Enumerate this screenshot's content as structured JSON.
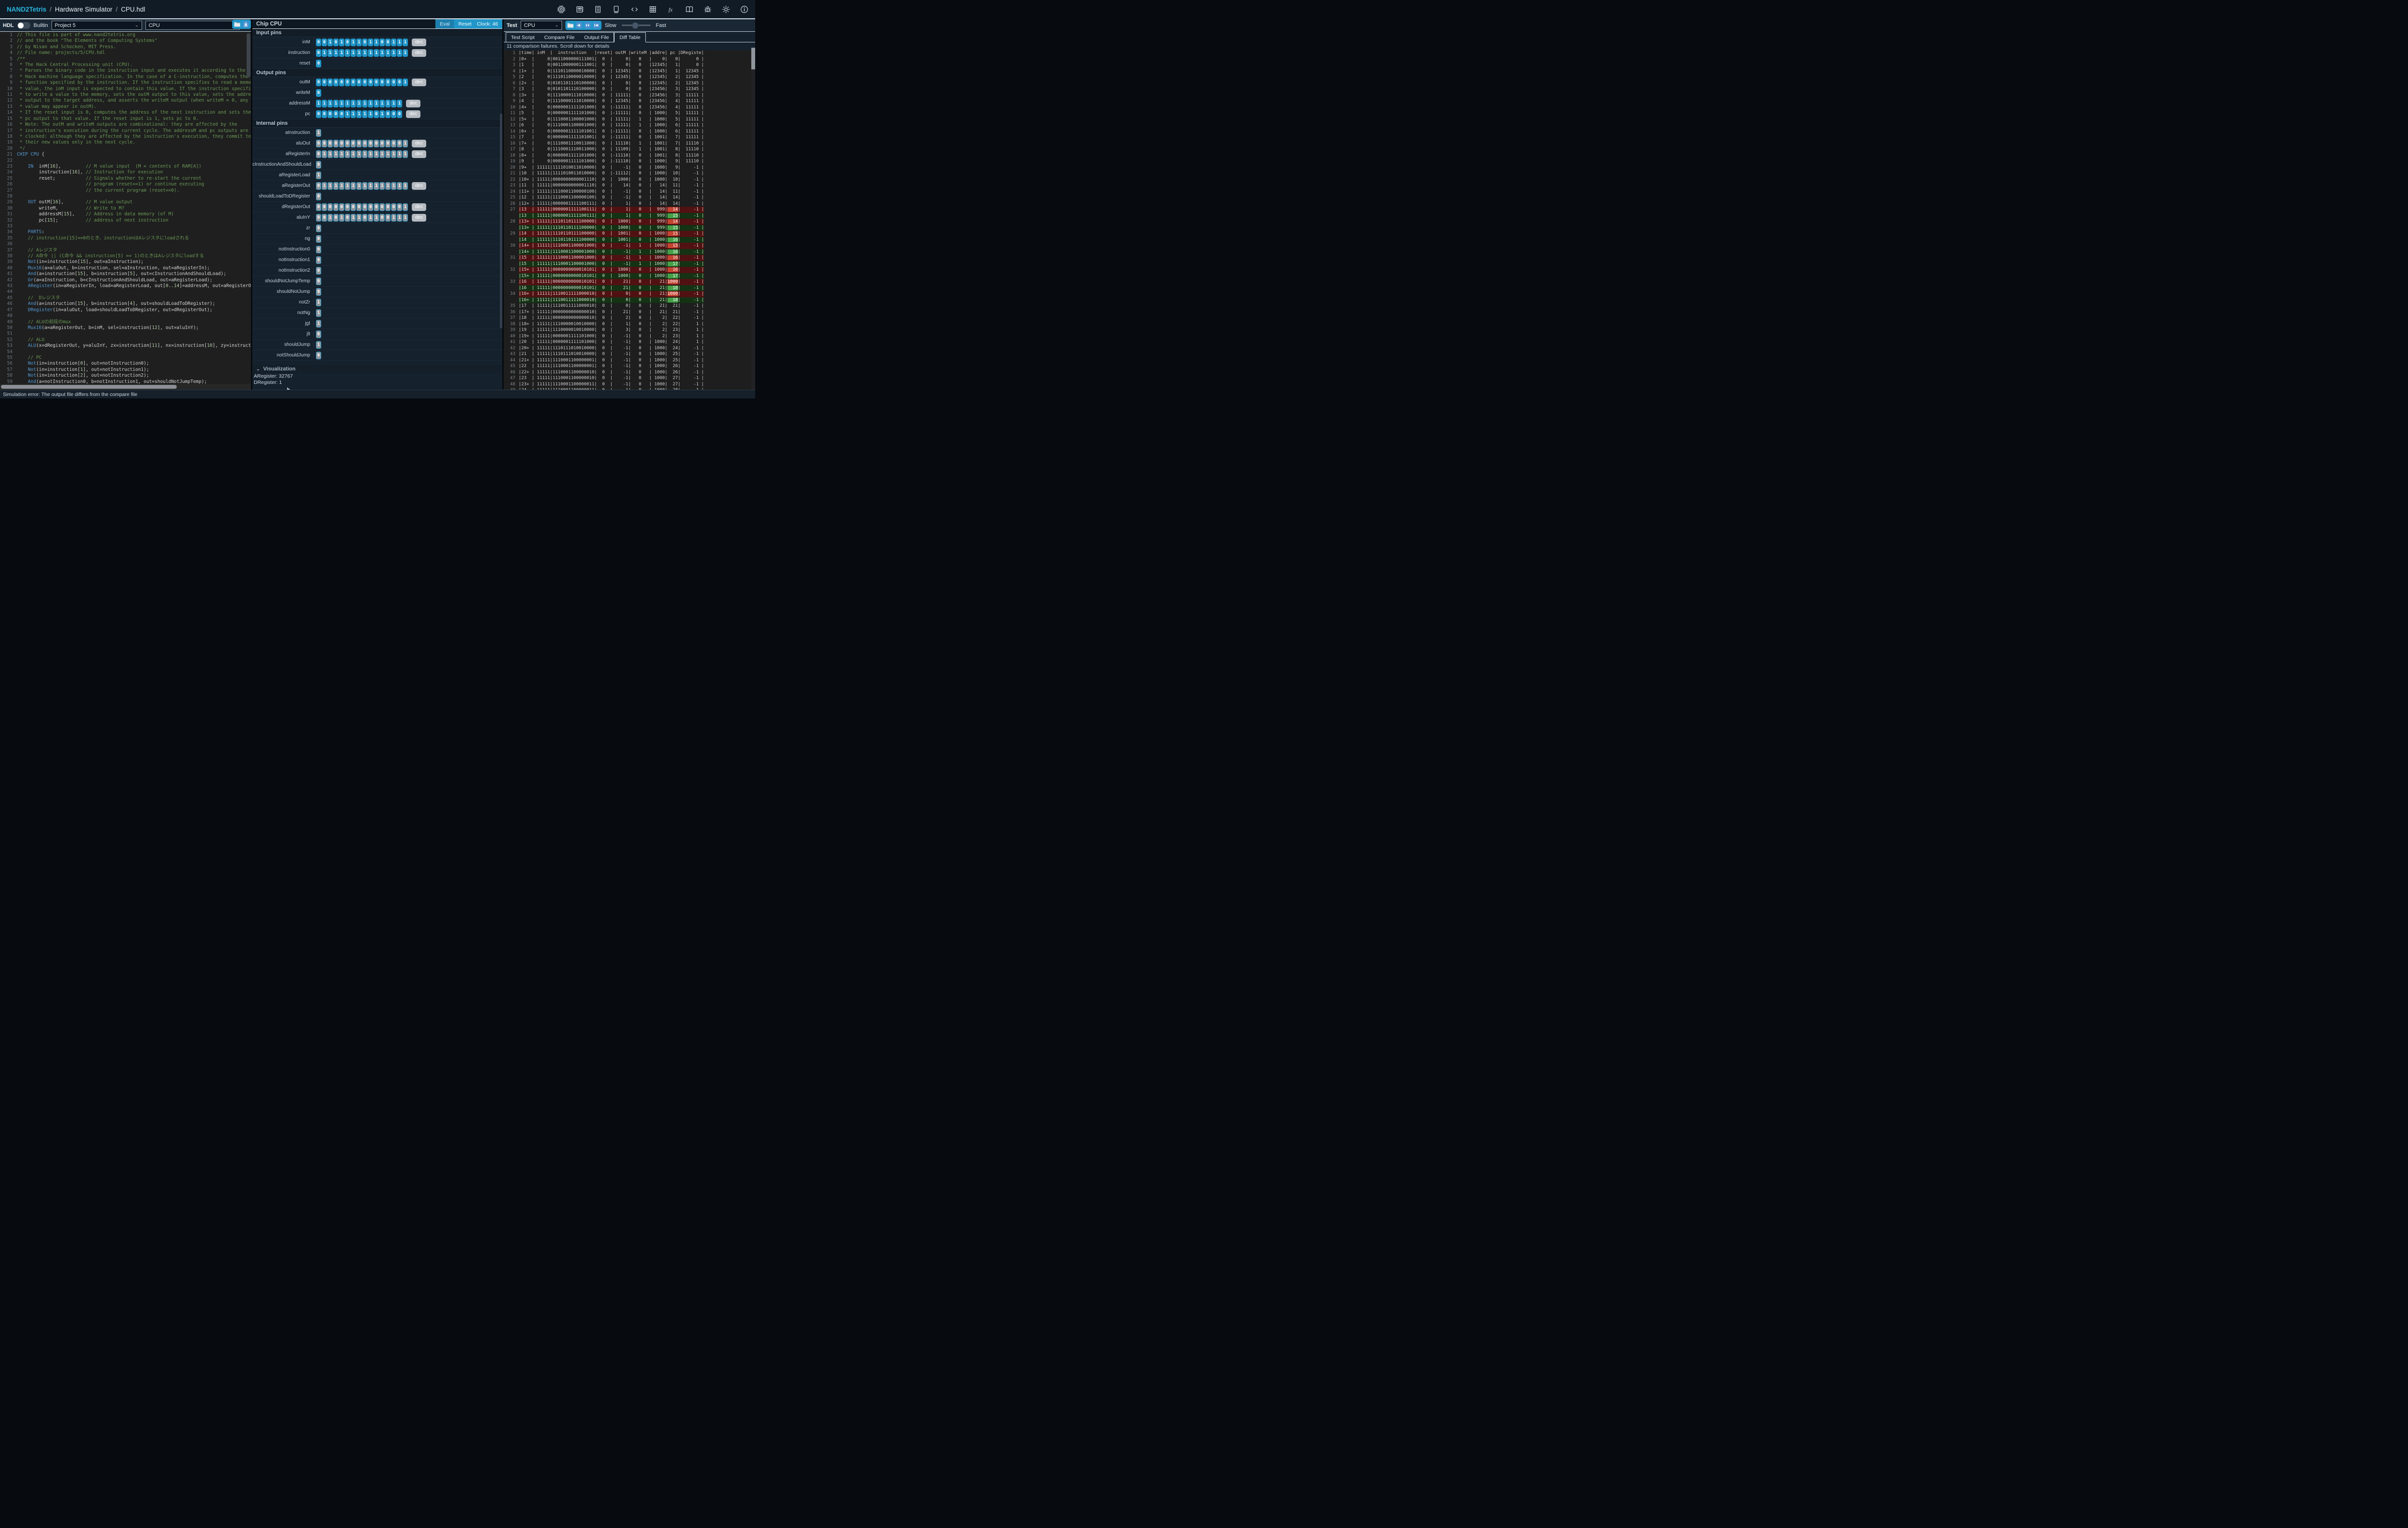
{
  "top_bar": {
    "brand": "NAND2Tetris",
    "separator": "/",
    "app_name": "Hardware Simulator",
    "file_name": "CPU.hdl",
    "icons": [
      "chip-icon",
      "memory-icon",
      "list-icon",
      "screen-icon",
      "code-icon",
      "grid-icon",
      "function-icon",
      "book-icon",
      "bug-icon",
      "settings-icon",
      "info-icon"
    ]
  },
  "left_panel": {
    "toolbar": {
      "hdl_label": "HDL",
      "builtin_label": "Builtin",
      "project_dropdown": "Project 5",
      "chip_dropdown": "CPU",
      "icons": [
        "folder-icon",
        "download-icon"
      ]
    },
    "editor": {
      "lines": [
        "// This file is part of www.nand2tetris.org",
        "// and the book \"The Elements of Computing Systems\"",
        "// by Nisan and Schocken, MIT Press.",
        "// File name: projects/5/CPU.hdl",
        "/**",
        " * The Hack Central Processing unit (CPU).",
        " * Parses the binary code in the instruction input and executes it according to the",
        " * Hack machine language specification. In the case of a C-instruction, computes the",
        " * function specified by the instruction. If the instruction specifies to read a memory",
        " * value, the inM input is expected to contain this value. If the instruction specifies",
        " * to write a value to the memory, sets the outM output to this value, sets the addressM",
        " * output to the target address, and asserts the writeM output (when writeM = 0, any",
        " * value may appear in outM).",
        " * If the reset input is 0, computes the address of the next instruction and sets the",
        " * pc output to that value. If the reset input is 1, sets pc to 0.",
        " * Note: The outM and writeM outputs are combinational: they are affected by the",
        " * instruction's execution during the current cycle. The addressM and pc outputs are",
        " * clocked: although they are affected by the instruction's execution, they commit to",
        " * their new values only in the next cycle.",
        " */",
        "CHIP CPU {",
        "",
        "    IN  inM[16],         // M value input  (M = contents of RAM[A])",
        "        instruction[16], // Instruction for execution",
        "        reset;           // Signals whether to re-start the current",
        "                         // program (reset==1) or continue executing",
        "                         // the current program (reset==0).",
        "",
        "    OUT outM[16],        // M value output",
        "        writeM,          // Write to M?",
        "        addressM[15],    // Address in data memory (of M)",
        "        pc[15];          // address of next instruction",
        "",
        "    PARTS:",
        "    // instruction[15]==0のとき、instructionはAレジスタにloadされる",
        "",
        "    // Aレジスタ",
        "    // A命令 || (C命令 && instruction[5] == 1)のときはAレジスタにloadする",
        "    Not(in=instruction[15], out=aInstruction);",
        "    Mux16(a=aluOut, b=instruction, sel=aInstruction, out=aRegisterIn);",
        "    And(a=instruction[15], b=instruction[5], out=cInstructionAndShouldLoad);",
        "    Or(a=aInstruction, b=cInstructionAndShouldLoad, out=aRegisterLoad);",
        "    ARegister(in=aRegisterIn, load=aRegisterLoad, out[0..14]=addressM, out=aRegisterOut);",
        "",
        "    //  Dレジスタ",
        "    And(a=instruction[15], b=instruction[4], out=shouldLoadToDRegister);",
        "    DRegister(in=aluOut, load=shouldLoadToDRegister, out=dRegisterOut);",
        "",
        "    // ALUの前段のmux",
        "    Mux16(a=aRegisterOut, b=inM, sel=instruction[12], out=aluInY);",
        "",
        "    // ALU",
        "    ALU(x=dRegisterOut, y=aluInY, zx=instruction[11], nx=instruction[10], zy=instruction[9], ny=in",
        "",
        "    // PC",
        "    Not(in=instruction[0], out=notInstruction0);",
        "    Not(in=instruction[1], out=notInstruction1);",
        "    Not(in=instruction[2], out=notInstruction2);",
        "    And(a=notInstruction0, b=notInstruction1, out=shouldNotJumpTemp);",
        "    And(a=shouldNotJumpTemp, b=notInstruction2, out=shouldNotJump); // jjj == 000"
      ]
    }
  },
  "middle_panel": {
    "header": {
      "title": "Chip CPU",
      "eval_button": "Eval",
      "reset_button": "Reset",
      "clock_label": "Clock: 46"
    },
    "dec_label": "dec",
    "pin_sections": [
      {
        "label": "Input pins",
        "input": true,
        "pins": [
          {
            "name": "inM",
            "bits": "0010101101100111",
            "dec": true,
            "kind": "io"
          },
          {
            "name": "instruction",
            "bits": "0111111111111111",
            "dec": true,
            "kind": "io"
          },
          {
            "name": "reset",
            "bits": "0",
            "dec": false,
            "kind": "io"
          }
        ]
      },
      {
        "label": "Output pins",
        "input": false,
        "pins": [
          {
            "name": "outM",
            "bits": "0000000000000001",
            "dec": true,
            "kind": "io"
          },
          {
            "name": "writeM",
            "bits": "0",
            "dec": false,
            "kind": "io"
          },
          {
            "name": "addressM",
            "bits": "111111111111111",
            "dec": true,
            "kind": "io"
          },
          {
            "name": "pc",
            "bits": "000001111101000",
            "dec": true,
            "kind": "io"
          }
        ]
      },
      {
        "label": "Internal pins",
        "input": false,
        "pins": [
          {
            "name": "aInstruction",
            "bits": "1",
            "dec": false,
            "kind": "internal"
          },
          {
            "name": "aluOut",
            "bits": "0000000000000001",
            "dec": true,
            "kind": "internal"
          },
          {
            "name": "aRegisterIn",
            "bits": "0111111111111111",
            "dec": true,
            "kind": "internal"
          },
          {
            "name": "cInstructionAndShouldLoad",
            "bits": "0",
            "dec": false,
            "kind": "internal"
          },
          {
            "name": "aRegisterLoad",
            "bits": "1",
            "dec": false,
            "kind": "internal"
          },
          {
            "name": "aRegisterOut",
            "bits": "0111111111111111",
            "dec": true,
            "kind": "internal"
          },
          {
            "name": "shouldLoadToDRegister",
            "bits": "0",
            "dec": false,
            "kind": "internal"
          },
          {
            "name": "dRegisterOut",
            "bits": "0000000000000001",
            "dec": true,
            "kind": "internal"
          },
          {
            "name": "aluInY",
            "bits": "0010101101100111",
            "dec": true,
            "kind": "internal"
          },
          {
            "name": "zr",
            "bits": "0",
            "dec": false,
            "kind": "internal"
          },
          {
            "name": "ng",
            "bits": "0",
            "dec": false,
            "kind": "internal"
          },
          {
            "name": "notInstruction0",
            "bits": "0",
            "dec": false,
            "kind": "internal"
          },
          {
            "name": "notInstruction1",
            "bits": "0",
            "dec": false,
            "kind": "internal"
          },
          {
            "name": "notInstruction2",
            "bits": "0",
            "dec": false,
            "kind": "internal"
          },
          {
            "name": "shouldNotJumpTemp",
            "bits": "0",
            "dec": false,
            "kind": "internal"
          },
          {
            "name": "shouldNotJump",
            "bits": "0",
            "dec": false,
            "kind": "internal"
          },
          {
            "name": "notZr",
            "bits": "1",
            "dec": false,
            "kind": "internal"
          },
          {
            "name": "notNg",
            "bits": "1",
            "dec": false,
            "kind": "internal"
          },
          {
            "name": "jgt",
            "bits": "1",
            "dec": false,
            "kind": "internal"
          },
          {
            "name": "jlt",
            "bits": "0",
            "dec": false,
            "kind": "internal"
          },
          {
            "name": "shouldJump",
            "bits": "1",
            "dec": false,
            "kind": "internal"
          },
          {
            "name": "notShouldJump",
            "bits": "0",
            "dec": false,
            "kind": "internal"
          }
        ]
      }
    ],
    "visualization": {
      "chevron": "⌄",
      "label": "Visualization",
      "lines": [
        "ARegister: 32767",
        "DRegister: 1"
      ],
      "alu_input_label": "1",
      "bracket_label": "]"
    }
  },
  "right_panel": {
    "toolbar": {
      "test_label": "Test",
      "chip_dropdown": "CPU",
      "icons": [
        "folder-icon",
        "step-icon",
        "run-icon",
        "rewind-icon"
      ],
      "slow_label": "Slow",
      "fast_label": "Fast",
      "slider_position": 0.45
    },
    "tabs": [
      "Test Script",
      "Compare File",
      "Output File",
      "Diff Table"
    ],
    "active_tab": "Diff Table",
    "message": "11 comparison failures. Scroll down for details",
    "diff_table": {
      "rows": [
        {
          "num": "1",
          "pre": "|time| inM  |  instruction   |reset| outM |writeM |addre| pc |DRegiste|",
          "kind": "header"
        },
        {
          "num": "2",
          "pre": "|0+  |     0|0011000000111001|  0  |     0|   0   |    0|   0|      0 |"
        },
        {
          "num": "3",
          "pre": "|1   |     0|0011000000111001|  0  |     0|   0   |12345|   1|      0 |"
        },
        {
          "num": "4",
          "pre": "|1+  |     0|1110110000010000|  0  | 12345|   0   |12345|   1|  12345 |"
        },
        {
          "num": "5",
          "pre": "|2   |     0|1110110000010000|  0  | 12345|   0   |12345|   2|  12345 |"
        },
        {
          "num": "6",
          "pre": "|2+  |     0|0101101110100000|  0  |     0|   0   |12345|   2|  12345 |"
        },
        {
          "num": "7",
          "pre": "|3   |     0|0101101110100000|  0  |     0|   0   |23456|   3|  12345 |"
        },
        {
          "num": "8",
          "pre": "|3+  |     0|1110000111010000|  0  | 11111|   0   |23456|   3|  11111 |"
        },
        {
          "num": "9",
          "pre": "|4   |     0|1110000111010000|  0  | 12345|   0   |23456|   4|  11111 |"
        },
        {
          "num": "10",
          "pre": "|4+  |     0|0000001111101000|  0  |-11111|   0   |23456|   4|  11111 |"
        },
        {
          "num": "11",
          "pre": "|5   |     0|0000001111101000|  0  |-11111|   0   | 1000|   5|  11111 |"
        },
        {
          "num": "12",
          "pre": "|5+  |     0|1110001100001000|  0  | 11111|   1   | 1000|   5|  11111 |"
        },
        {
          "num": "13",
          "pre": "|6   |     0|1110001100001000|  0  | 11111|   1   | 1000|   6|  11111 |"
        },
        {
          "num": "14",
          "pre": "|6+  |     0|0000001111101001|  0  |-11111|   0   | 1000|   6|  11111 |"
        },
        {
          "num": "15",
          "pre": "|7   |     0|0000001111101001|  0  |-11111|   0   | 1001|   7|  11111 |"
        },
        {
          "num": "16",
          "pre": "|7+  |     0|1110001110011000|  0  | 11110|   1   | 1001|   7|  11110 |"
        },
        {
          "num": "17",
          "pre": "|8   |     0|1110001110011000|  0  | 11109|   1   | 1001|   8|  11110 |"
        },
        {
          "num": "18",
          "pre": "|8+  |     0|0000001111101000|  0  |-11110|   0   | 1001|   8|  11110 |"
        },
        {
          "num": "19",
          "pre": "|9   |     0|0000001111101000|  0  |-11110|   0   | 1000|   9|  11110 |"
        },
        {
          "num": "20",
          "pre": "|9+  | 11111|1111010011010000|  0  |    -1|   0   | 1000|   9|     -1 |"
        },
        {
          "num": "21",
          "pre": "|10  | 11111|1111010011010000|  0  |-11112|   0   | 1000|  10|     -1 |"
        },
        {
          "num": "22",
          "pre": "|10+ | 11111|0000000000001110|  0  |  1000|   0   | 1000|  10|     -1 |"
        },
        {
          "num": "23",
          "pre": "|11  | 11111|0000000000001110|  0  |    14|   0   |   14|  11|     -1 |"
        },
        {
          "num": "24",
          "pre": "|11+ | 11111|1110001100000100|  0  |    -1|   0   |   14|  11|     -1 |"
        },
        {
          "num": "25",
          "pre": "|12  | 11111|1110001100000100|  0  |    -1|   0   |   14|  14|     -1 |"
        },
        {
          "num": "26",
          "pre": "|12+ | 11111|0000001111100111|  0  |     1|   0   |   14|  14|     -1 |"
        },
        {
          "num": "27",
          "pre": "|13  | 11111|0000001111100111|  0  |     1|   0   |  999|",
          "hl": "  14",
          "post": "|     -1 |",
          "kind": "fail"
        },
        {
          "num": "",
          "pre": "|13  | 11111|0000001111100111|  0  |     1|   0   |  999|",
          "hl": "  15",
          "post": "|     -1 |",
          "kind": "pass"
        },
        {
          "num": "28",
          "pre": "|13+ | 11111|1110110111100000|  0  |  1000|   0   |  999|",
          "hl": "  14",
          "post": "|     -1 |",
          "kind": "fail"
        },
        {
          "num": "",
          "pre": "|13+ | 11111|1110110111100000|  0  |  1000|   0   |  999|",
          "hl": "  15",
          "post": "|     -1 |",
          "kind": "pass"
        },
        {
          "num": "29",
          "pre": "|14  | 11111|1110110111100000|  0  |  1001|   0   | 1000|",
          "hl": "  15",
          "post": "|     -1 |",
          "kind": "fail"
        },
        {
          "num": "",
          "pre": "|14  | 11111|1110110111100000|  0  |  1001|   0   | 1000|",
          "hl": "  16",
          "post": "|     -1 |",
          "kind": "pass"
        },
        {
          "num": "30",
          "pre": "|14+ | 11111|1110001100001000|  0  |    -1|   1   | 1000|",
          "hl": "  15",
          "post": "|     -1 |",
          "kind": "fail"
        },
        {
          "num": "",
          "pre": "|14+ | 11111|1110001100001000|  0  |    -1|   1   | 1000|",
          "hl": "  16",
          "post": "|     -1 |",
          "kind": "pass"
        },
        {
          "num": "31",
          "pre": "|15  | 11111|1110001100001000|  0  |    -1|   1   | 1000|",
          "hl": "  16",
          "post": "|     -1 |",
          "kind": "fail"
        },
        {
          "num": "",
          "pre": "|15  | 11111|1110001100001000|  0  |    -1|   1   | 1000|",
          "hl": "  17",
          "post": "|     -1 |",
          "kind": "pass"
        },
        {
          "num": "32",
          "pre": "|15+ | 11111|0000000000010101|  0  |  1000|   0   | 1000|",
          "hl": "  16",
          "post": "|     -1 |",
          "kind": "fail"
        },
        {
          "num": "",
          "pre": "|15+ | 11111|0000000000010101|  0  |  1000|   0   | 1000|",
          "hl": "  17",
          "post": "|     -1 |",
          "kind": "pass"
        },
        {
          "num": "33",
          "pre": "|16  | 11111|0000000000010101|  0  |    21|   0   |   21|",
          "hl": "1000",
          "post": "|     -1 |",
          "kind": "fail"
        },
        {
          "num": "",
          "pre": "|16  | 11111|0000000000010101|  0  |    21|   0   |   21|",
          "hl": "  18",
          "post": "|     -1 |",
          "kind": "pass"
        },
        {
          "num": "34",
          "pre": "|16+ | 11111|1110011111000010|  0  |     0|   0   |   21|",
          "hl": "1000",
          "post": "|     -1 |",
          "kind": "fail"
        },
        {
          "num": "",
          "pre": "|16+ | 11111|1110011111000010|  0  |     0|   0   |   21|",
          "hl": "  18",
          "post": "|     -1 |",
          "kind": "pass"
        },
        {
          "num": "35",
          "pre": "|17  | 11111|1110011111000010|  0  |     0|   0   |   21|  21|     -1 |"
        },
        {
          "num": "36",
          "pre": "|17+ | 11111|0000000000000010|  0  |    21|   0   |   21|  21|     -1 |"
        },
        {
          "num": "37",
          "pre": "|18  | 11111|0000000000000010|  0  |     2|   0   |    2|  22|     -1 |"
        },
        {
          "num": "38",
          "pre": "|18+ | 11111|1110000010010000|  0  |     1|   0   |    2|  22|      1 |"
        },
        {
          "num": "39",
          "pre": "|19  | 11111|1110000010010000|  0  |     3|   0   |    2|  23|      1 |"
        },
        {
          "num": "40",
          "pre": "|19+ | 11111|0000001111101000|  0  |    -1|   0   |    2|  23|      1 |"
        },
        {
          "num": "41",
          "pre": "|20  | 11111|0000001111101000|  0  |    -1|   0   | 1000|  24|      1 |"
        },
        {
          "num": "42",
          "pre": "|20+ | 11111|1110111010010000|  0  |    -1|   0   | 1000|  24|     -1 |"
        },
        {
          "num": "43",
          "pre": "|21  | 11111|1110111010010000|  0  |    -1|   0   | 1000|  25|     -1 |"
        },
        {
          "num": "44",
          "pre": "|21+ | 11111|1110001100000001|  0  |    -1|   0   | 1000|  25|     -1 |"
        },
        {
          "num": "45",
          "pre": "|22  | 11111|1110001100000001|  0  |    -1|   0   | 1000|  26|     -1 |"
        },
        {
          "num": "46",
          "pre": "|22+ | 11111|1110001100000010|  0  |    -1|   0   | 1000|  26|     -1 |"
        },
        {
          "num": "47",
          "pre": "|23  | 11111|1110001100000010|  0  |    -1|   0   | 1000|  27|     -1 |"
        },
        {
          "num": "48",
          "pre": "|23+ | 11111|1110001100000011|  0  |    -1|   0   | 1000|  27|     -1 |"
        },
        {
          "num": "49",
          "pre": "|24  | 11111|1110001100000011|  0  |    -1|   0   | 1000|  28|     -1 |"
        }
      ]
    }
  },
  "status_bar": {
    "text": "Simulation error: The output file differs from the compare file"
  },
  "colors": {
    "accent": "#2196c9",
    "fail_row": "#511113",
    "fail_cell": "#c44433",
    "pass_row": "#143214",
    "pass_cell": "#46a049"
  }
}
